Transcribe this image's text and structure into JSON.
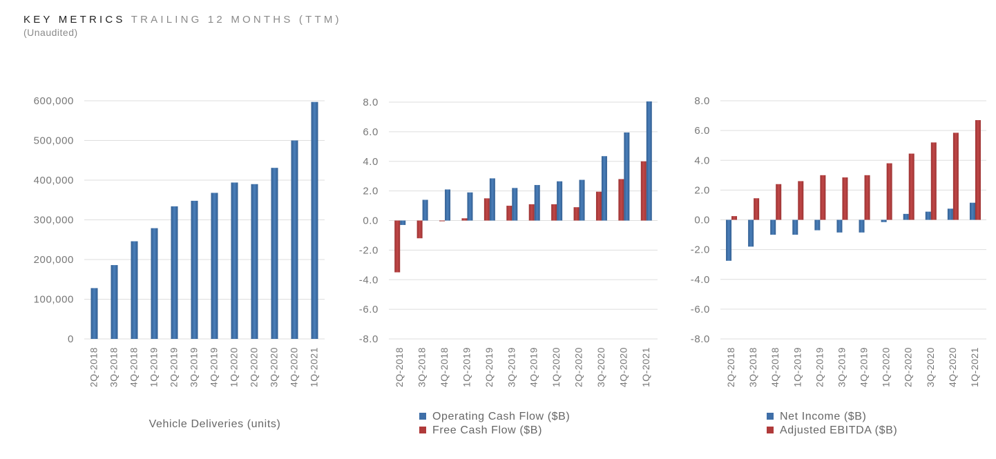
{
  "header": {
    "title": "KEY METRICS",
    "title_suffix": "TRAILING 12 MONTHS (TTM)",
    "note": "(Unaudited)"
  },
  "colors": {
    "blue": "#3f6fa8",
    "red": "#b03a3a",
    "grid": "#dddddd",
    "text": "#7a7a7a"
  },
  "chart_data": [
    {
      "type": "bar",
      "xlabel": "Vehicle Deliveries (units)",
      "categories": [
        "2Q-2018",
        "3Q-2018",
        "4Q-2018",
        "1Q-2019",
        "2Q-2019",
        "3Q-2019",
        "4Q-2019",
        "1Q-2020",
        "2Q-2020",
        "3Q-2020",
        "4Q-2020",
        "1Q-2021"
      ],
      "series": [
        {
          "values": [
            128000,
            186000,
            246000,
            279000,
            334000,
            348000,
            368000,
            394000,
            390000,
            431000,
            500000,
            597000
          ]
        }
      ],
      "ylim": [
        0,
        600000
      ],
      "yticks": [
        "0",
        "100,000",
        "200,000",
        "300,000",
        "400,000",
        "500,000",
        "600,000"
      ],
      "grid": true
    },
    {
      "type": "bar",
      "categories": [
        "2Q-2018",
        "3Q-2018",
        "4Q-2018",
        "1Q-2019",
        "2Q-2019",
        "3Q-2019",
        "4Q-2019",
        "1Q-2020",
        "2Q-2020",
        "3Q-2020",
        "4Q-2020",
        "1Q-2021"
      ],
      "series": [
        {
          "name": "Free Cash Flow ($B)",
          "color": "#b03a3a",
          "values": [
            -3.5,
            -1.2,
            -0.05,
            0.15,
            1.5,
            1.0,
            1.1,
            1.1,
            0.9,
            1.95,
            2.8,
            4.0
          ]
        },
        {
          "name": "Operating Cash Flow ($B)",
          "color": "#3f6fa8",
          "values": [
            -0.3,
            1.4,
            2.1,
            1.9,
            2.85,
            2.2,
            2.4,
            2.65,
            2.75,
            4.35,
            5.95,
            8.05
          ]
        }
      ],
      "legend_order": [
        1,
        0
      ],
      "legend": "bottom",
      "ylim": [
        -8,
        8
      ],
      "yticks": [
        "-8.0",
        "-6.0",
        "-4.0",
        "-2.0",
        "0.0",
        "2.0",
        "4.0",
        "6.0",
        "8.0"
      ],
      "grid": true
    },
    {
      "type": "bar",
      "categories": [
        "2Q-2018",
        "3Q-2018",
        "4Q-2018",
        "1Q-2019",
        "2Q-2019",
        "3Q-2019",
        "4Q-2019",
        "1Q-2020",
        "2Q-2020",
        "3Q-2020",
        "4Q-2020",
        "1Q-2021"
      ],
      "series": [
        {
          "name": "Net Income ($B)",
          "color": "#3f6fa8",
          "values": [
            -2.75,
            -1.8,
            -1.0,
            -1.0,
            -0.7,
            -0.85,
            -0.85,
            -0.15,
            0.4,
            0.55,
            0.75,
            1.15
          ]
        },
        {
          "name": "Adjusted EBITDA ($B)",
          "color": "#b03a3a",
          "values": [
            0.25,
            1.45,
            2.4,
            2.6,
            3.0,
            2.85,
            3.0,
            3.8,
            4.45,
            5.2,
            5.85,
            6.7
          ]
        }
      ],
      "legend_order": [
        0,
        1
      ],
      "legend": "bottom",
      "ylim": [
        -8,
        8
      ],
      "yticks": [
        "-8.0",
        "-6.0",
        "-4.0",
        "-2.0",
        "0.0",
        "2.0",
        "4.0",
        "6.0",
        "8.0"
      ],
      "grid": true
    }
  ]
}
